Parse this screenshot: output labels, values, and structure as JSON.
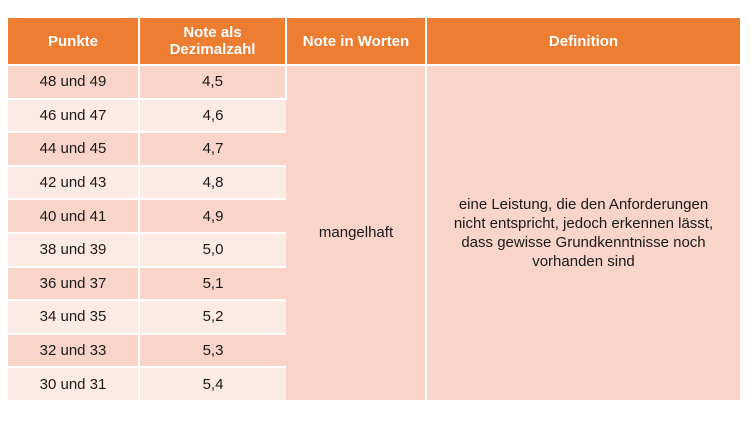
{
  "table": {
    "headers": {
      "points": "Punkte",
      "decimal": "Note als Dezimalzahl",
      "words": "Note in Worten",
      "definition": "Definition"
    },
    "rows": [
      {
        "points": "48 und 49",
        "decimal": "4,5"
      },
      {
        "points": "46 und 47",
        "decimal": "4,6"
      },
      {
        "points": "44 und 45",
        "decimal": "4,7"
      },
      {
        "points": "42 und 43",
        "decimal": "4,8"
      },
      {
        "points": "40 und 41",
        "decimal": "4,9"
      },
      {
        "points": "38 und 39",
        "decimal": "5,0"
      },
      {
        "points": "36 und 37",
        "decimal": "5,1"
      },
      {
        "points": "34 und 35",
        "decimal": "5,2"
      },
      {
        "points": "32 und 33",
        "decimal": "5,3"
      },
      {
        "points": "30 und 31",
        "decimal": "5,4"
      }
    ],
    "merged": {
      "words": "mangelhaft",
      "definition": "eine Leistung, die den Anforderungen nicht entspricht, jedoch erkennen lässt, dass gewisse Grundkenntnisse noch vorhanden sind"
    }
  },
  "colors": {
    "header_bg": "#ed7d31",
    "row_dark": "#f8d5c8",
    "row_light": "#fceae5"
  }
}
